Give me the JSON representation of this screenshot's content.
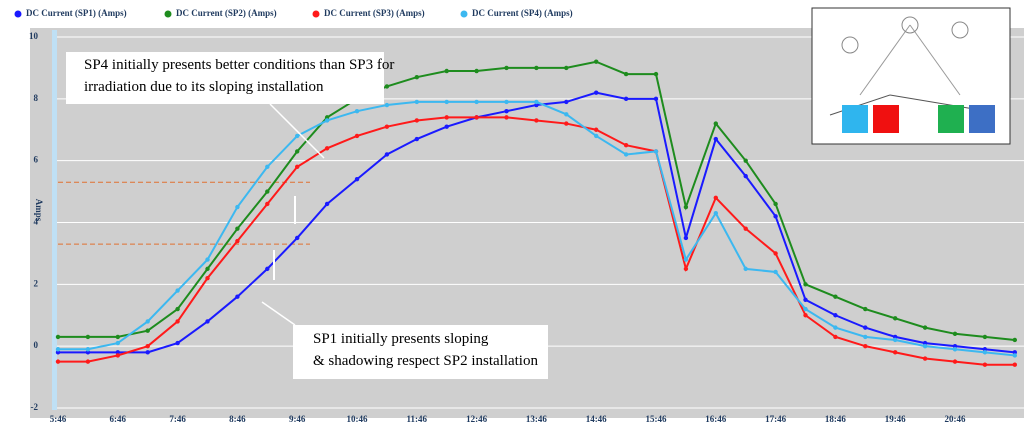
{
  "chart_data": {
    "type": "line",
    "y_label": "Amps",
    "categories": [
      "5:46",
      null,
      "6:46",
      null,
      "7:46",
      null,
      "8:46",
      null,
      "9:46",
      null,
      "10:46",
      null,
      "11:46",
      null,
      "12:46",
      null,
      "13:46",
      null,
      "14:46",
      null,
      "15:46",
      null,
      "16:46",
      null,
      "17:46",
      null,
      "18:46",
      null,
      "19:46",
      null,
      "20:46",
      null,
      null
    ],
    "series": [
      {
        "name": "DC Current (SP1) (Amps)",
        "color": "#1a1aff",
        "values": [
          -0.2,
          -0.2,
          -0.2,
          -0.2,
          0.1,
          0.8,
          1.6,
          2.5,
          3.5,
          4.6,
          5.4,
          6.2,
          6.7,
          7.1,
          7.4,
          7.6,
          7.8,
          7.9,
          8.2,
          8.0,
          8.0,
          3.5,
          6.7,
          5.5,
          4.2,
          1.5,
          1.0,
          0.6,
          0.3,
          0.1,
          0,
          -0.1,
          -0.2
        ]
      },
      {
        "name": "DC Current (SP2) (Amps)",
        "color": "#1e8c1e",
        "values": [
          0.3,
          0.3,
          0.3,
          0.5,
          1.2,
          2.5,
          3.8,
          5.0,
          6.3,
          7.4,
          8.0,
          8.4,
          8.7,
          8.9,
          8.9,
          9.0,
          9.0,
          9.0,
          9.2,
          8.8,
          8.8,
          4.5,
          7.2,
          6.0,
          4.6,
          2.0,
          1.6,
          1.2,
          0.9,
          0.6,
          0.4,
          0.3,
          0.2
        ]
      },
      {
        "name": "DC Current (SP3) (Amps)",
        "color": "#ff1a1a",
        "values": [
          -0.5,
          -0.5,
          -0.3,
          0,
          0.8,
          2.2,
          3.4,
          4.6,
          5.8,
          6.4,
          6.8,
          7.1,
          7.3,
          7.4,
          7.4,
          7.4,
          7.3,
          7.2,
          7.0,
          6.5,
          6.3,
          2.5,
          4.8,
          3.8,
          3.0,
          1.0,
          0.3,
          0,
          -0.2,
          -0.4,
          -0.5,
          -0.6,
          -0.6
        ]
      },
      {
        "name": "DC Current (SP4) (Amps)",
        "color": "#3cb8f0",
        "values": [
          -0.1,
          -0.1,
          0.1,
          0.8,
          1.8,
          2.8,
          4.5,
          5.8,
          6.8,
          7.3,
          7.6,
          7.8,
          7.9,
          7.9,
          7.9,
          7.9,
          7.9,
          7.5,
          6.8,
          6.2,
          6.3,
          2.8,
          4.3,
          2.5,
          2.4,
          1.2,
          0.6,
          0.3,
          0.2,
          0,
          -0.1,
          -0.2,
          -0.3
        ]
      }
    ],
    "reference_lines": [
      5.3,
      3.3
    ],
    "reference_color": "#e07030",
    "ylim": [
      -2,
      10
    ],
    "yticks": [
      -2,
      0,
      2,
      4,
      6,
      8,
      10
    ],
    "grid": true,
    "annotations": [
      "SP4 initially presents better conditions than SP3 for irradiation due to its  sloping installation",
      "SP1 initially presents sloping & shadowing respect  SP2 installation"
    ]
  }
}
